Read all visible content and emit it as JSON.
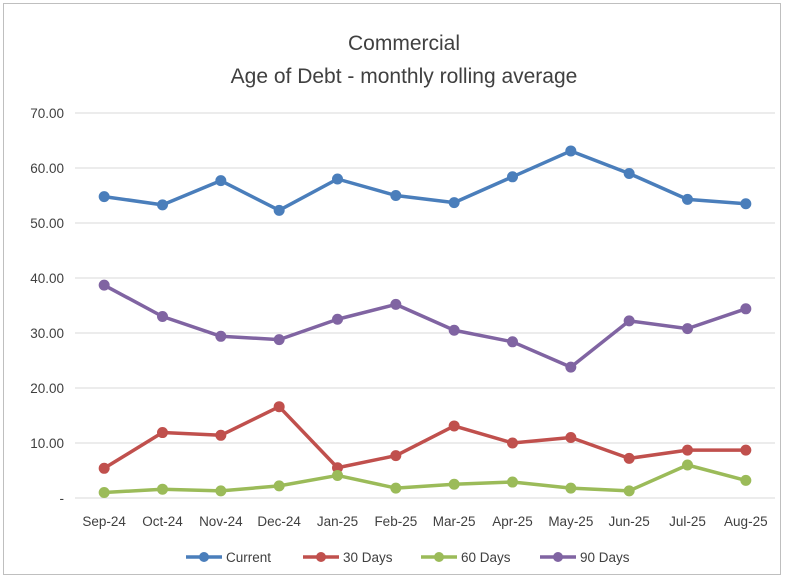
{
  "chart_data": {
    "type": "line",
    "title": "Commercial",
    "subtitle": "Age of Debt - monthly rolling average",
    "categories": [
      "Sep-24",
      "Oct-24",
      "Nov-24",
      "Dec-24",
      "Jan-25",
      "Feb-25",
      "Mar-25",
      "Apr-25",
      "May-25",
      "Jun-25",
      "Jul-25",
      "Aug-25"
    ],
    "ylim": [
      0,
      70
    ],
    "yticks": [
      0,
      10,
      20,
      30,
      40,
      50,
      60,
      70
    ],
    "ytick_labels": [
      "-",
      "10.00",
      "20.00",
      "30.00",
      "40.00",
      "50.00",
      "60.00",
      "70.00"
    ],
    "grid": true,
    "legend_position": "bottom",
    "series": [
      {
        "name": "Current",
        "color": "#4a7ebb",
        "values": [
          54.8,
          53.3,
          57.7,
          52.3,
          58.0,
          55.0,
          53.7,
          58.4,
          63.1,
          59.0,
          54.3,
          53.5
        ]
      },
      {
        "name": "30 Days",
        "color": "#c0504d",
        "values": [
          5.4,
          11.9,
          11.4,
          16.6,
          5.5,
          7.7,
          13.1,
          10.0,
          11.0,
          7.2,
          8.7,
          8.7
        ]
      },
      {
        "name": "60 Days",
        "color": "#9bbb59",
        "values": [
          1.0,
          1.6,
          1.3,
          2.2,
          4.1,
          1.8,
          2.5,
          2.9,
          1.8,
          1.3,
          6.0,
          3.2
        ]
      },
      {
        "name": "90 Days",
        "color": "#8064a2",
        "values": [
          38.7,
          33.0,
          29.4,
          28.8,
          32.5,
          35.2,
          30.5,
          28.4,
          23.8,
          32.2,
          30.8,
          34.4
        ]
      }
    ]
  }
}
